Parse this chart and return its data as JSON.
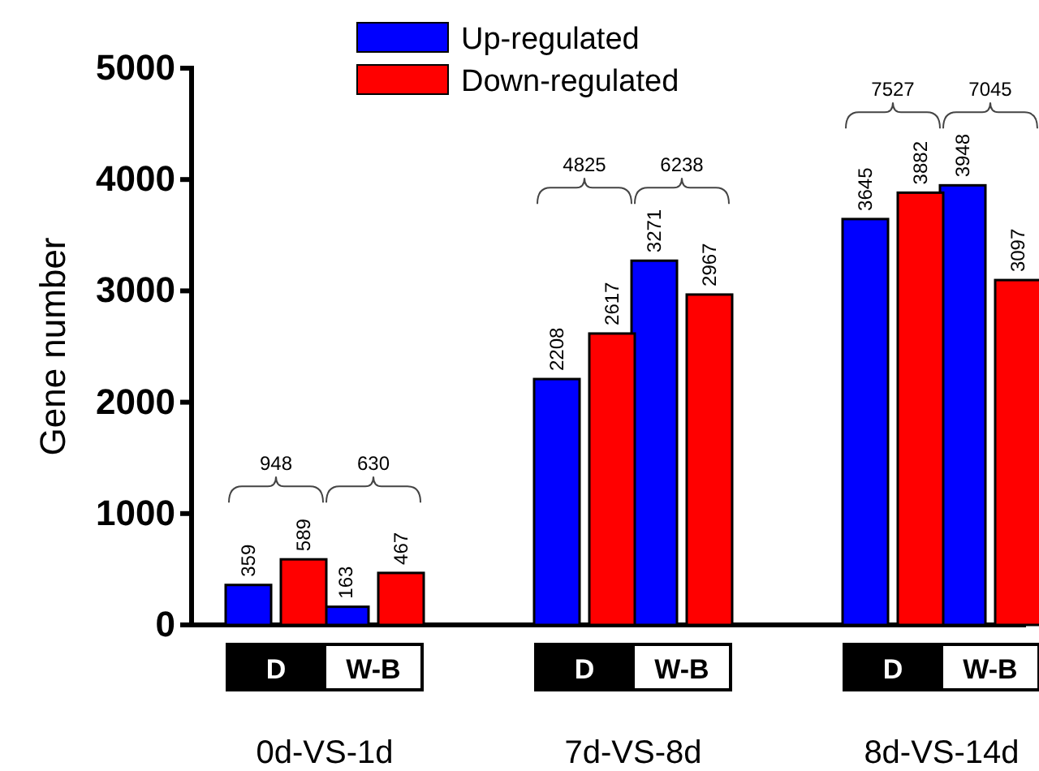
{
  "chart_data": {
    "type": "bar",
    "ylabel": "Gene number",
    "categories": [
      "D",
      "W-B",
      "D",
      "W-B",
      "D",
      "W-B"
    ],
    "series": [
      {
        "name": "Up-regulated",
        "color": "#0000ff",
        "values": [
          359,
          163,
          2208,
          3271,
          3645,
          3948
        ]
      },
      {
        "name": "Down-regulated",
        "color": "#ff0000",
        "values": [
          589,
          467,
          2617,
          2967,
          3882,
          3097
        ]
      }
    ],
    "ylim": [
      0,
      5000
    ],
    "yticks": [
      0,
      1000,
      2000,
      3000,
      4000,
      5000
    ],
    "grid": false,
    "legend": "top",
    "data_labels": true,
    "annotations": [
      "948",
      "630",
      "4825",
      "6238",
      "7527",
      "7045",
      "0d-VS-1d",
      "7d-VS-8d",
      "8d-VS-14d"
    ]
  }
}
